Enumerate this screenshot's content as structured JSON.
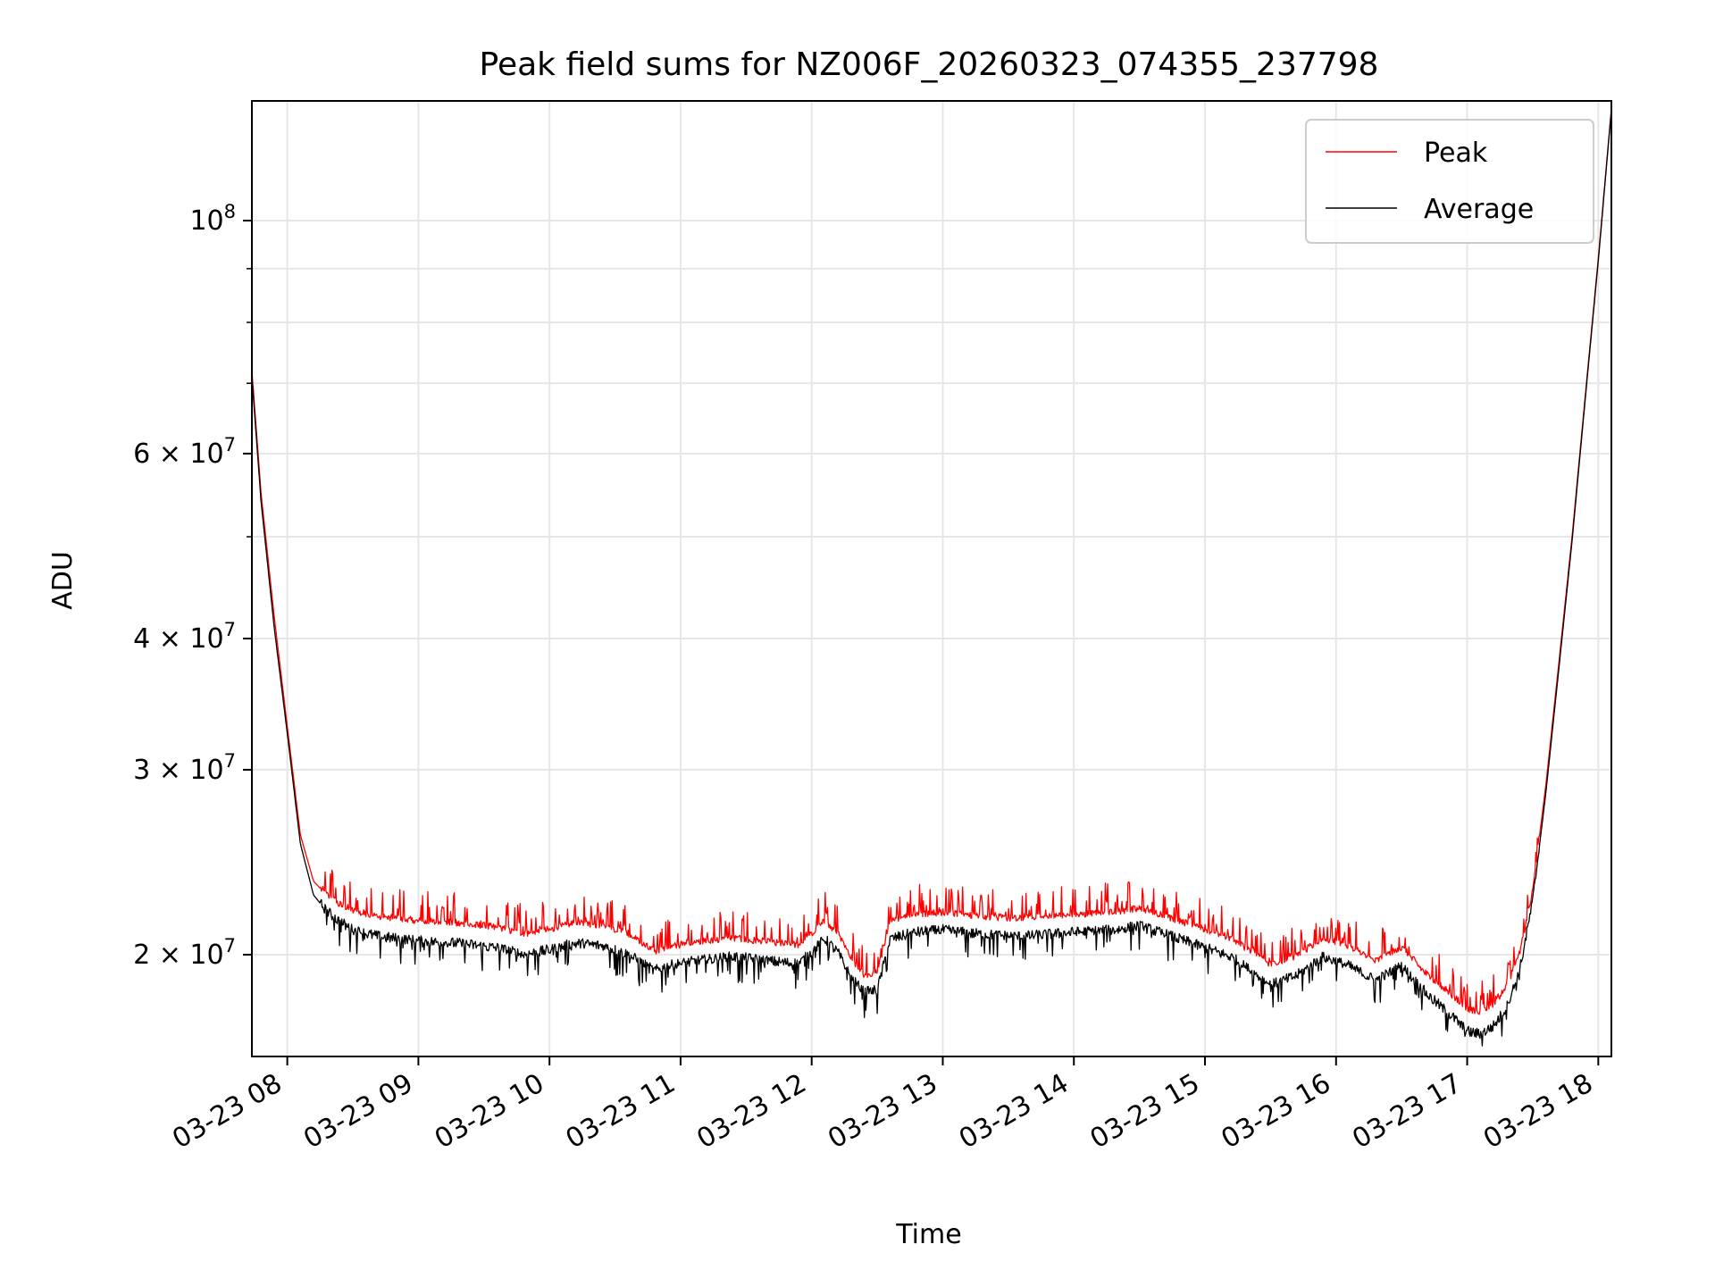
{
  "chart_data": {
    "type": "line",
    "title": "Peak field sums for NZ006F_20260323_074355_237798",
    "xlabel": "Time",
    "ylabel": "ADU",
    "yscale": "log",
    "ylim": [
      16000000,
      130000000
    ],
    "xlim_hours": [
      7.73,
      18.1
    ],
    "grid": true,
    "legend_position": "top-right",
    "x_ticks": [
      {
        "hour": 8,
        "label": "03-23 08"
      },
      {
        "hour": 9,
        "label": "03-23 09"
      },
      {
        "hour": 10,
        "label": "03-23 10"
      },
      {
        "hour": 11,
        "label": "03-23 11"
      },
      {
        "hour": 12,
        "label": "03-23 12"
      },
      {
        "hour": 13,
        "label": "03-23 13"
      },
      {
        "hour": 14,
        "label": "03-23 14"
      },
      {
        "hour": 15,
        "label": "03-23 15"
      },
      {
        "hour": 16,
        "label": "03-23 16"
      },
      {
        "hour": 17,
        "label": "03-23 17"
      },
      {
        "hour": 18,
        "label": "03-23 18"
      }
    ],
    "y_ticks": [
      {
        "value": 20000000,
        "base": "2 × 10",
        "exp": "7"
      },
      {
        "value": 30000000,
        "base": "3 × 10",
        "exp": "7"
      },
      {
        "value": 40000000,
        "base": "4 × 10",
        "exp": "7"
      },
      {
        "value": 60000000,
        "base": "6 × 10",
        "exp": "7"
      },
      {
        "value": 100000000,
        "base": "10",
        "exp": "8"
      }
    ],
    "y_minor_ticks": [
      50000000,
      70000000,
      80000000,
      90000000
    ],
    "series": [
      {
        "name": "Peak",
        "color": "#ff0000",
        "x_hours": [
          7.73,
          7.8,
          7.9,
          8.0,
          8.1,
          8.2,
          8.3,
          8.4,
          8.5,
          8.7,
          9.0,
          9.3,
          9.6,
          9.8,
          10.0,
          10.2,
          10.4,
          10.6,
          10.8,
          10.9,
          11.1,
          11.4,
          11.7,
          11.9,
          12.0,
          12.1,
          12.2,
          12.3,
          12.4,
          12.5,
          12.6,
          12.8,
          13.0,
          13.3,
          13.6,
          14.0,
          14.3,
          14.5,
          14.7,
          15.0,
          15.2,
          15.4,
          15.5,
          15.7,
          15.9,
          16.1,
          16.3,
          16.5,
          16.7,
          16.9,
          17.0,
          17.1,
          17.2,
          17.3,
          17.4,
          17.5,
          17.6,
          17.7,
          17.8,
          17.9,
          18.0,
          18.1
        ],
        "values": [
          72000000,
          55000000,
          42000000,
          33000000,
          26000000,
          23500000,
          22800000,
          22300000,
          22000000,
          21700000,
          21500000,
          21400000,
          21200000,
          20900000,
          21100000,
          21400000,
          21300000,
          20900000,
          20100000,
          20300000,
          20500000,
          20700000,
          20500000,
          20400000,
          20900000,
          21500000,
          20900000,
          19800000,
          19100000,
          19200000,
          21500000,
          21800000,
          21900000,
          21700000,
          21600000,
          21800000,
          21900000,
          22100000,
          21700000,
          21100000,
          20700000,
          19900000,
          19500000,
          19900000,
          20700000,
          20300000,
          19700000,
          20300000,
          19100000,
          18200000,
          17700000,
          17600000,
          17900000,
          18600000,
          20000000,
          23000000,
          29000000,
          38000000,
          50000000,
          68000000,
          92000000,
          128000000
        ]
      },
      {
        "name": "Average",
        "color": "#000000",
        "x_hours": [
          7.73,
          7.8,
          7.9,
          8.0,
          8.1,
          8.2,
          8.3,
          8.4,
          8.5,
          8.7,
          9.0,
          9.3,
          9.6,
          9.8,
          10.0,
          10.2,
          10.4,
          10.6,
          10.8,
          10.9,
          11.1,
          11.4,
          11.7,
          11.9,
          12.0,
          12.1,
          12.2,
          12.3,
          12.4,
          12.5,
          12.6,
          12.8,
          13.0,
          13.3,
          13.6,
          14.0,
          14.3,
          14.5,
          14.7,
          15.0,
          15.2,
          15.4,
          15.5,
          15.7,
          15.9,
          16.1,
          16.3,
          16.5,
          16.7,
          16.9,
          17.0,
          17.1,
          17.2,
          17.3,
          17.4,
          17.5,
          17.6,
          17.7,
          17.8,
          17.9,
          18.0,
          18.1
        ],
        "values": [
          71000000,
          54000000,
          41000000,
          32500000,
          25500000,
          22800000,
          22000000,
          21500000,
          21100000,
          20800000,
          20600000,
          20500000,
          20300000,
          20000000,
          20200000,
          20500000,
          20400000,
          20000000,
          19300000,
          19500000,
          19700000,
          19900000,
          19700000,
          19600000,
          20100000,
          20700000,
          20100000,
          19000000,
          18400000,
          18500000,
          20700000,
          21000000,
          21100000,
          20900000,
          20800000,
          21000000,
          21100000,
          21300000,
          20900000,
          20300000,
          19900000,
          19100000,
          18700000,
          19100000,
          19900000,
          19500000,
          18900000,
          19500000,
          18300000,
          17400000,
          16900000,
          16800000,
          17100000,
          17800000,
          19300000,
          22500000,
          28500000,
          37500000,
          49500000,
          67500000,
          91500000,
          127500000
        ]
      }
    ]
  }
}
